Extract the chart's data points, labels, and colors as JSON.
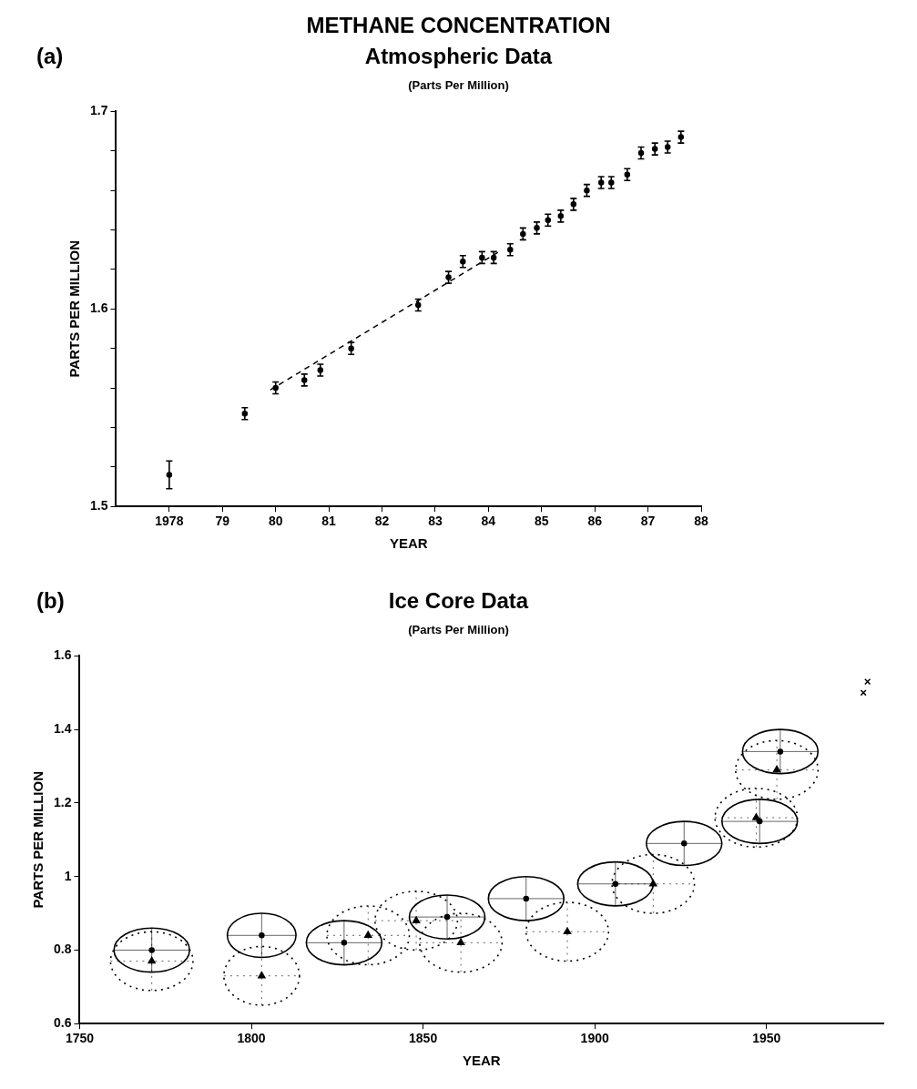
{
  "chart_data": [
    {
      "type": "scatter",
      "title": "Atmospheric Data",
      "subtitle": "(Parts Per Million)",
      "xlabel": "YEAR",
      "ylabel": "PARTS PER MILLION",
      "annotations": [
        "METHANE CONCENTRATION",
        "(a)"
      ],
      "xlim": [
        1977,
        1988
      ],
      "xticks": [
        {
          "value": 1978,
          "label": "1978"
        },
        {
          "value": 1979,
          "label": "79"
        },
        {
          "value": 1980,
          "label": "80"
        },
        {
          "value": 1981,
          "label": "81"
        },
        {
          "value": 1982,
          "label": "82"
        },
        {
          "value": 1983,
          "label": "83"
        },
        {
          "value": 1984,
          "label": "84"
        },
        {
          "value": 1985,
          "label": "85"
        },
        {
          "value": 1986,
          "label": "86"
        },
        {
          "value": 1987,
          "label": "87"
        },
        {
          "value": 1988,
          "label": "88"
        }
      ],
      "ylim": [
        1.5,
        1.7
      ],
      "yticks": [
        1.5,
        {
          "value": 1.52,
          "label": null
        },
        {
          "value": 1.54,
          "label": null
        },
        {
          "value": 1.56,
          "label": null
        },
        {
          "value": 1.58,
          "label": null
        },
        1.6,
        {
          "value": 1.62,
          "label": null
        },
        {
          "value": 1.64,
          "label": null
        },
        {
          "value": 1.66,
          "label": null
        },
        {
          "value": 1.68,
          "label": null
        },
        1.7
      ],
      "series": [
        {
          "type": "scatter",
          "color": "#000000",
          "marker": "circle",
          "x": [
            1978.0,
            1979.42,
            1980.0,
            1980.54,
            1980.84,
            1981.42,
            1982.68,
            1983.25,
            1983.52,
            1983.88,
            1984.1,
            1984.41,
            1984.65,
            1984.91,
            1985.12,
            1985.36,
            1985.6,
            1985.85,
            1986.12,
            1986.31,
            1986.61,
            1986.87,
            1987.13,
            1987.37,
            1987.62
          ],
          "values": [
            1.516,
            1.547,
            1.56,
            1.564,
            1.569,
            1.58,
            1.602,
            1.616,
            1.624,
            1.626,
            1.626,
            1.63,
            1.638,
            1.641,
            1.645,
            1.647,
            1.653,
            1.66,
            1.664,
            1.664,
            1.668,
            1.679,
            1.681,
            1.682,
            1.687
          ],
          "errors": [
            0.007,
            0.003,
            0.003,
            0.003,
            0.003,
            0.003,
            0.003,
            0.003,
            0.003,
            0.003,
            0.003,
            0.003,
            0.003,
            0.003,
            0.003,
            0.003,
            0.003,
            0.003,
            0.003,
            0.003,
            0.003,
            0.003,
            0.003,
            0.003,
            0.003
          ]
        },
        {
          "type": "line",
          "color": "#000000",
          "line_style": "dashed",
          "x": [
            1979.9,
            1984.2
          ],
          "values": [
            1.559,
            1.629
          ]
        }
      ]
    },
    {
      "type": "scatter",
      "title": "Ice Core Data",
      "subtitle": "(Parts Per Million)",
      "xlabel": "YEAR",
      "ylabel": "PARTS PER MILLION",
      "annotations": [
        "(b)"
      ],
      "xlim": [
        1750,
        1984
      ],
      "xticks": [
        1750,
        1800,
        1850,
        1900,
        1950
      ],
      "ylim": [
        0.6,
        1.6
      ],
      "yticks": [
        0.6,
        0.8,
        1.0,
        1.2,
        1.4,
        1.6
      ],
      "series": [
        {
          "type": "scatter",
          "color": "#000000",
          "marker": "circle",
          "line_style": "solid",
          "x": [
            1771,
            1803,
            1827,
            1857,
            1880,
            1906,
            1926,
            1948,
            1954
          ],
          "values": [
            0.8,
            0.84,
            0.82,
            0.89,
            0.94,
            0.98,
            1.09,
            1.15,
            1.34
          ],
          "errors": [
            0.06,
            0.06,
            0.06,
            0.06,
            0.06,
            0.06,
            0.06,
            0.06,
            0.06
          ],
          "xerrors": [
            11,
            10,
            11,
            11,
            11,
            11,
            11,
            11,
            11
          ]
        },
        {
          "type": "scatter",
          "color": "#000000",
          "marker": "triangle",
          "line_style": "dotted",
          "x": [
            1771,
            1803,
            1834,
            1848,
            1861,
            1892,
            1917,
            1947,
            1953
          ],
          "values": [
            0.77,
            0.73,
            0.84,
            0.88,
            0.82,
            0.85,
            0.98,
            1.16,
            1.29
          ],
          "errors": [
            0.08,
            0.08,
            0.08,
            0.08,
            0.08,
            0.08,
            0.08,
            0.08,
            0.08
          ],
          "xerrors": [
            12,
            11,
            12,
            12,
            12,
            12,
            12,
            12,
            12
          ]
        },
        {
          "type": "scatter",
          "color": "#000000",
          "marker": "cross",
          "x": [
            1978.2,
            1979.4
          ],
          "values": [
            1.5,
            1.53
          ]
        }
      ]
    }
  ]
}
